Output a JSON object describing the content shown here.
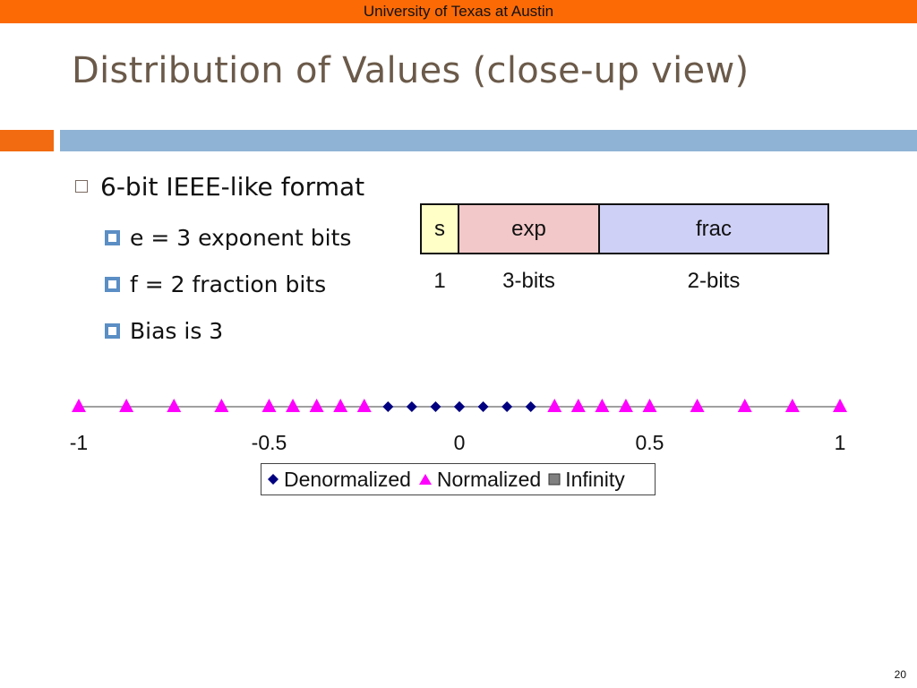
{
  "header": {
    "institution": "University of Texas at Austin"
  },
  "slide": {
    "title": "Distribution of Values (close-up view)",
    "page_number": "20"
  },
  "bullets": {
    "main": "6-bit IEEE-like format",
    "sub": [
      "e = 3 exponent bits",
      "f = 2 fraction bits",
      "Bias is 3"
    ]
  },
  "format": {
    "fields": [
      "s",
      "exp",
      "frac"
    ],
    "widths": [
      "1",
      "3-bits",
      "2-bits"
    ]
  },
  "colors": {
    "header_bar": "#fc6a06",
    "title_text": "#6b5a4a",
    "band_orange": "#f26b10",
    "band_blue": "#8fb3d4",
    "sign_field": "#ffffc8",
    "exp_field": "#f2c8c8",
    "frac_field": "#cfd0f5",
    "denormalized_marker": "#000080",
    "normalized_marker": "#ff00ff",
    "infinity_marker": "#808080"
  },
  "chart_data": {
    "type": "scatter",
    "xlim": [
      -1,
      1
    ],
    "tick_labels": [
      "-1",
      "-0.5",
      "0",
      "0.5",
      "1"
    ],
    "ticks": [
      -1,
      -0.5,
      0,
      0.5,
      1
    ],
    "legend_position": "bottom",
    "series": [
      {
        "name": "Denormalized",
        "marker": "diamond",
        "values": [
          -0.1875,
          -0.125,
          -0.0625,
          0,
          0,
          0.0625,
          0.125,
          0.1875
        ]
      },
      {
        "name": "Normalized",
        "marker": "triangle",
        "values": [
          -1,
          -0.875,
          -0.75,
          -0.625,
          -0.5,
          -0.4375,
          -0.375,
          -0.3125,
          -0.25,
          0.25,
          0.3125,
          0.375,
          0.4375,
          0.5,
          0.625,
          0.75,
          0.875,
          1
        ]
      },
      {
        "name": "Infinity",
        "marker": "square",
        "values": []
      }
    ]
  }
}
